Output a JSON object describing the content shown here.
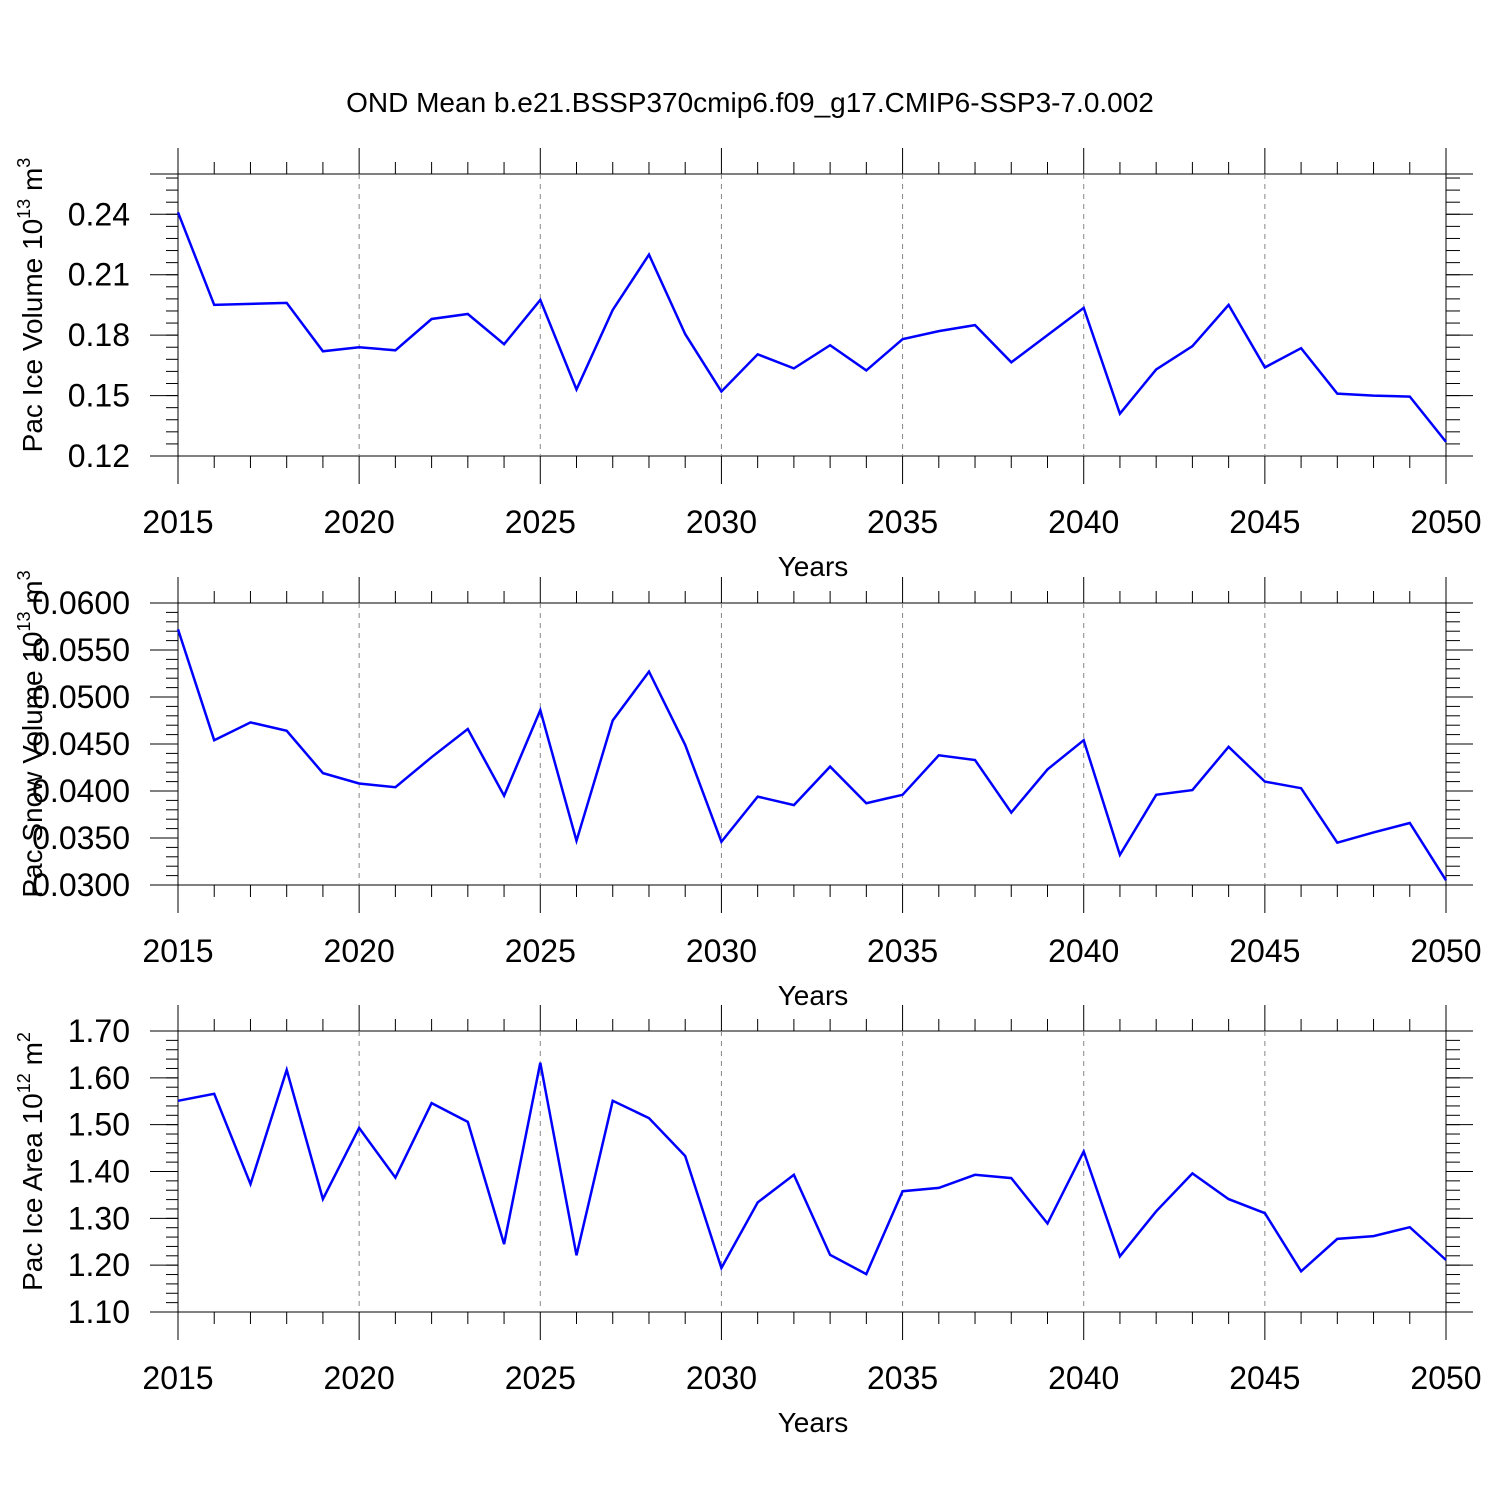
{
  "figure_title": "OND Mean b.e21.BSSP370cmip6.f09_g17.CMIP6-SSP3-7.0.002",
  "line_color": "#0000ff",
  "chart_data": [
    {
      "type": "line",
      "title": "OND Mean b.e21.BSSP370cmip6.f09_g17.CMIP6-SSP3-7.0.002",
      "xlabel": "Years",
      "ylabel_parts": {
        "main": "Pac Ice Volume 10",
        "exp1": "13",
        "mid": " m",
        "exp2": "3"
      },
      "xlim": [
        2015,
        2050
      ],
      "ylim": [
        0.12,
        0.26
      ],
      "x_ticks": [
        2015,
        2020,
        2025,
        2030,
        2035,
        2040,
        2045,
        2050
      ],
      "y_ticks": [
        0.12,
        0.15,
        0.18,
        0.21,
        0.24
      ],
      "y_tick_labels": [
        "0.12",
        "0.15",
        "0.18",
        "0.21",
        "0.24"
      ],
      "y_minor_step": 0.006,
      "grid": "dashed vertical at major x ticks",
      "x": [
        2015,
        2016,
        2017,
        2018,
        2019,
        2020,
        2021,
        2022,
        2023,
        2024,
        2025,
        2026,
        2027,
        2028,
        2029,
        2030,
        2031,
        2032,
        2033,
        2034,
        2035,
        2036,
        2037,
        2038,
        2039,
        2040,
        2041,
        2042,
        2043,
        2044,
        2045,
        2046,
        2047,
        2048,
        2049,
        2050
      ],
      "values": [
        0.241,
        0.195,
        0.1955,
        0.196,
        0.172,
        0.174,
        0.1725,
        0.188,
        0.1905,
        0.1755,
        0.1975,
        0.153,
        0.1925,
        0.22,
        0.1805,
        0.152,
        0.1705,
        0.1635,
        0.175,
        0.1625,
        0.178,
        0.182,
        0.185,
        0.1665,
        0.18,
        0.1935,
        0.141,
        0.163,
        0.1745,
        0.195,
        0.164,
        0.1735,
        0.151,
        0.15,
        0.1495,
        0.127
      ]
    },
    {
      "type": "line",
      "xlabel": "Years",
      "ylabel_parts": {
        "main": "Pac Snow Volume 10",
        "exp1": "13",
        "mid": " m",
        "exp2": "3"
      },
      "xlim": [
        2015,
        2050
      ],
      "ylim": [
        0.03,
        0.06
      ],
      "x_ticks": [
        2015,
        2020,
        2025,
        2030,
        2035,
        2040,
        2045,
        2050
      ],
      "y_ticks": [
        0.03,
        0.035,
        0.04,
        0.045,
        0.05,
        0.055,
        0.06
      ],
      "y_tick_labels": [
        "0.0300",
        "0.0350",
        "0.0400",
        "0.0450",
        "0.0500",
        "0.0550",
        "0.0600"
      ],
      "y_minor_step": 0.001,
      "grid": "dashed vertical at major x ticks",
      "x": [
        2015,
        2016,
        2017,
        2018,
        2019,
        2020,
        2021,
        2022,
        2023,
        2024,
        2025,
        2026,
        2027,
        2028,
        2029,
        2030,
        2031,
        2032,
        2033,
        2034,
        2035,
        2036,
        2037,
        2038,
        2039,
        2040,
        2041,
        2042,
        2043,
        2044,
        2045,
        2046,
        2047,
        2048,
        2049,
        2050
      ],
      "values": [
        0.0572,
        0.0454,
        0.0473,
        0.0464,
        0.0419,
        0.0408,
        0.0404,
        0.0436,
        0.0466,
        0.0395,
        0.0486,
        0.0347,
        0.0475,
        0.0527,
        0.0449,
        0.0346,
        0.0394,
        0.0385,
        0.0426,
        0.0387,
        0.0396,
        0.0438,
        0.0433,
        0.0377,
        0.0423,
        0.0454,
        0.0332,
        0.0396,
        0.0401,
        0.0447,
        0.041,
        0.0403,
        0.0345,
        0.0356,
        0.0366,
        0.0305
      ]
    },
    {
      "type": "line",
      "xlabel": "Years",
      "ylabel_parts": {
        "main": "Pac Ice Area 10",
        "exp1": "12",
        "mid": " m",
        "exp2": "2"
      },
      "xlim": [
        2015,
        2050
      ],
      "ylim": [
        1.1,
        1.7
      ],
      "x_ticks": [
        2015,
        2020,
        2025,
        2030,
        2035,
        2040,
        2045,
        2050
      ],
      "y_ticks": [
        1.1,
        1.2,
        1.3,
        1.4,
        1.5,
        1.6,
        1.7
      ],
      "y_tick_labels": [
        "1.10",
        "1.20",
        "1.30",
        "1.40",
        "1.50",
        "1.60",
        "1.70"
      ],
      "y_minor_step": 0.02,
      "grid": "dashed vertical at major x ticks",
      "x": [
        2015,
        2016,
        2017,
        2018,
        2019,
        2020,
        2021,
        2022,
        2023,
        2024,
        2025,
        2026,
        2027,
        2028,
        2029,
        2030,
        2031,
        2032,
        2033,
        2034,
        2035,
        2036,
        2037,
        2038,
        2039,
        2040,
        2041,
        2042,
        2043,
        2044,
        2045,
        2046,
        2047,
        2048,
        2049,
        2050
      ],
      "values": [
        1.551,
        1.566,
        1.373,
        1.617,
        1.341,
        1.493,
        1.387,
        1.546,
        1.506,
        1.245,
        1.632,
        1.221,
        1.551,
        1.514,
        1.433,
        1.194,
        1.334,
        1.393,
        1.222,
        1.181,
        1.358,
        1.365,
        1.393,
        1.386,
        1.289,
        1.443,
        1.219,
        1.315,
        1.396,
        1.341,
        1.311,
        1.187,
        1.256,
        1.262,
        1.281,
        1.211
      ]
    }
  ]
}
